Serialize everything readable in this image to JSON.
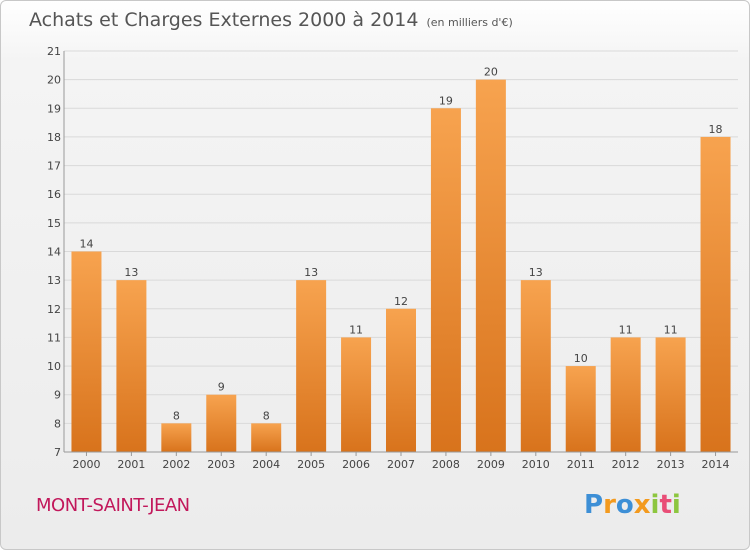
{
  "chart_data": {
    "type": "bar",
    "title": "Achats et Charges Externes 2000 à 2014",
    "subtitle": "(en milliers d'€)",
    "categories": [
      "2000",
      "2001",
      "2002",
      "2003",
      "2004",
      "2005",
      "2006",
      "2007",
      "2008",
      "2009",
      "2010",
      "2011",
      "2012",
      "2013",
      "2014"
    ],
    "values": [
      14,
      13,
      8,
      9,
      8,
      13,
      11,
      12,
      19,
      20,
      13,
      10,
      11,
      11,
      18
    ],
    "ylim": [
      7,
      21
    ],
    "yticks": [
      "7",
      "8",
      "9",
      "10",
      "11",
      "12",
      "13",
      "14",
      "15",
      "16",
      "17",
      "18",
      "19",
      "20",
      "21"
    ],
    "grid": true,
    "bar_color_top": "#f7a34f",
    "bar_color_bottom": "#d8731c"
  },
  "commune": "MONT-SAINT-JEAN",
  "logo": {
    "letters": [
      "P",
      "r",
      "o",
      "x",
      "i",
      "t",
      "i"
    ],
    "colors": [
      "#3d8fd6",
      "#f39a1e",
      "#3d8fd6",
      "#f39a1e",
      "#8dc63f",
      "#e94e77",
      "#8dc63f"
    ]
  }
}
